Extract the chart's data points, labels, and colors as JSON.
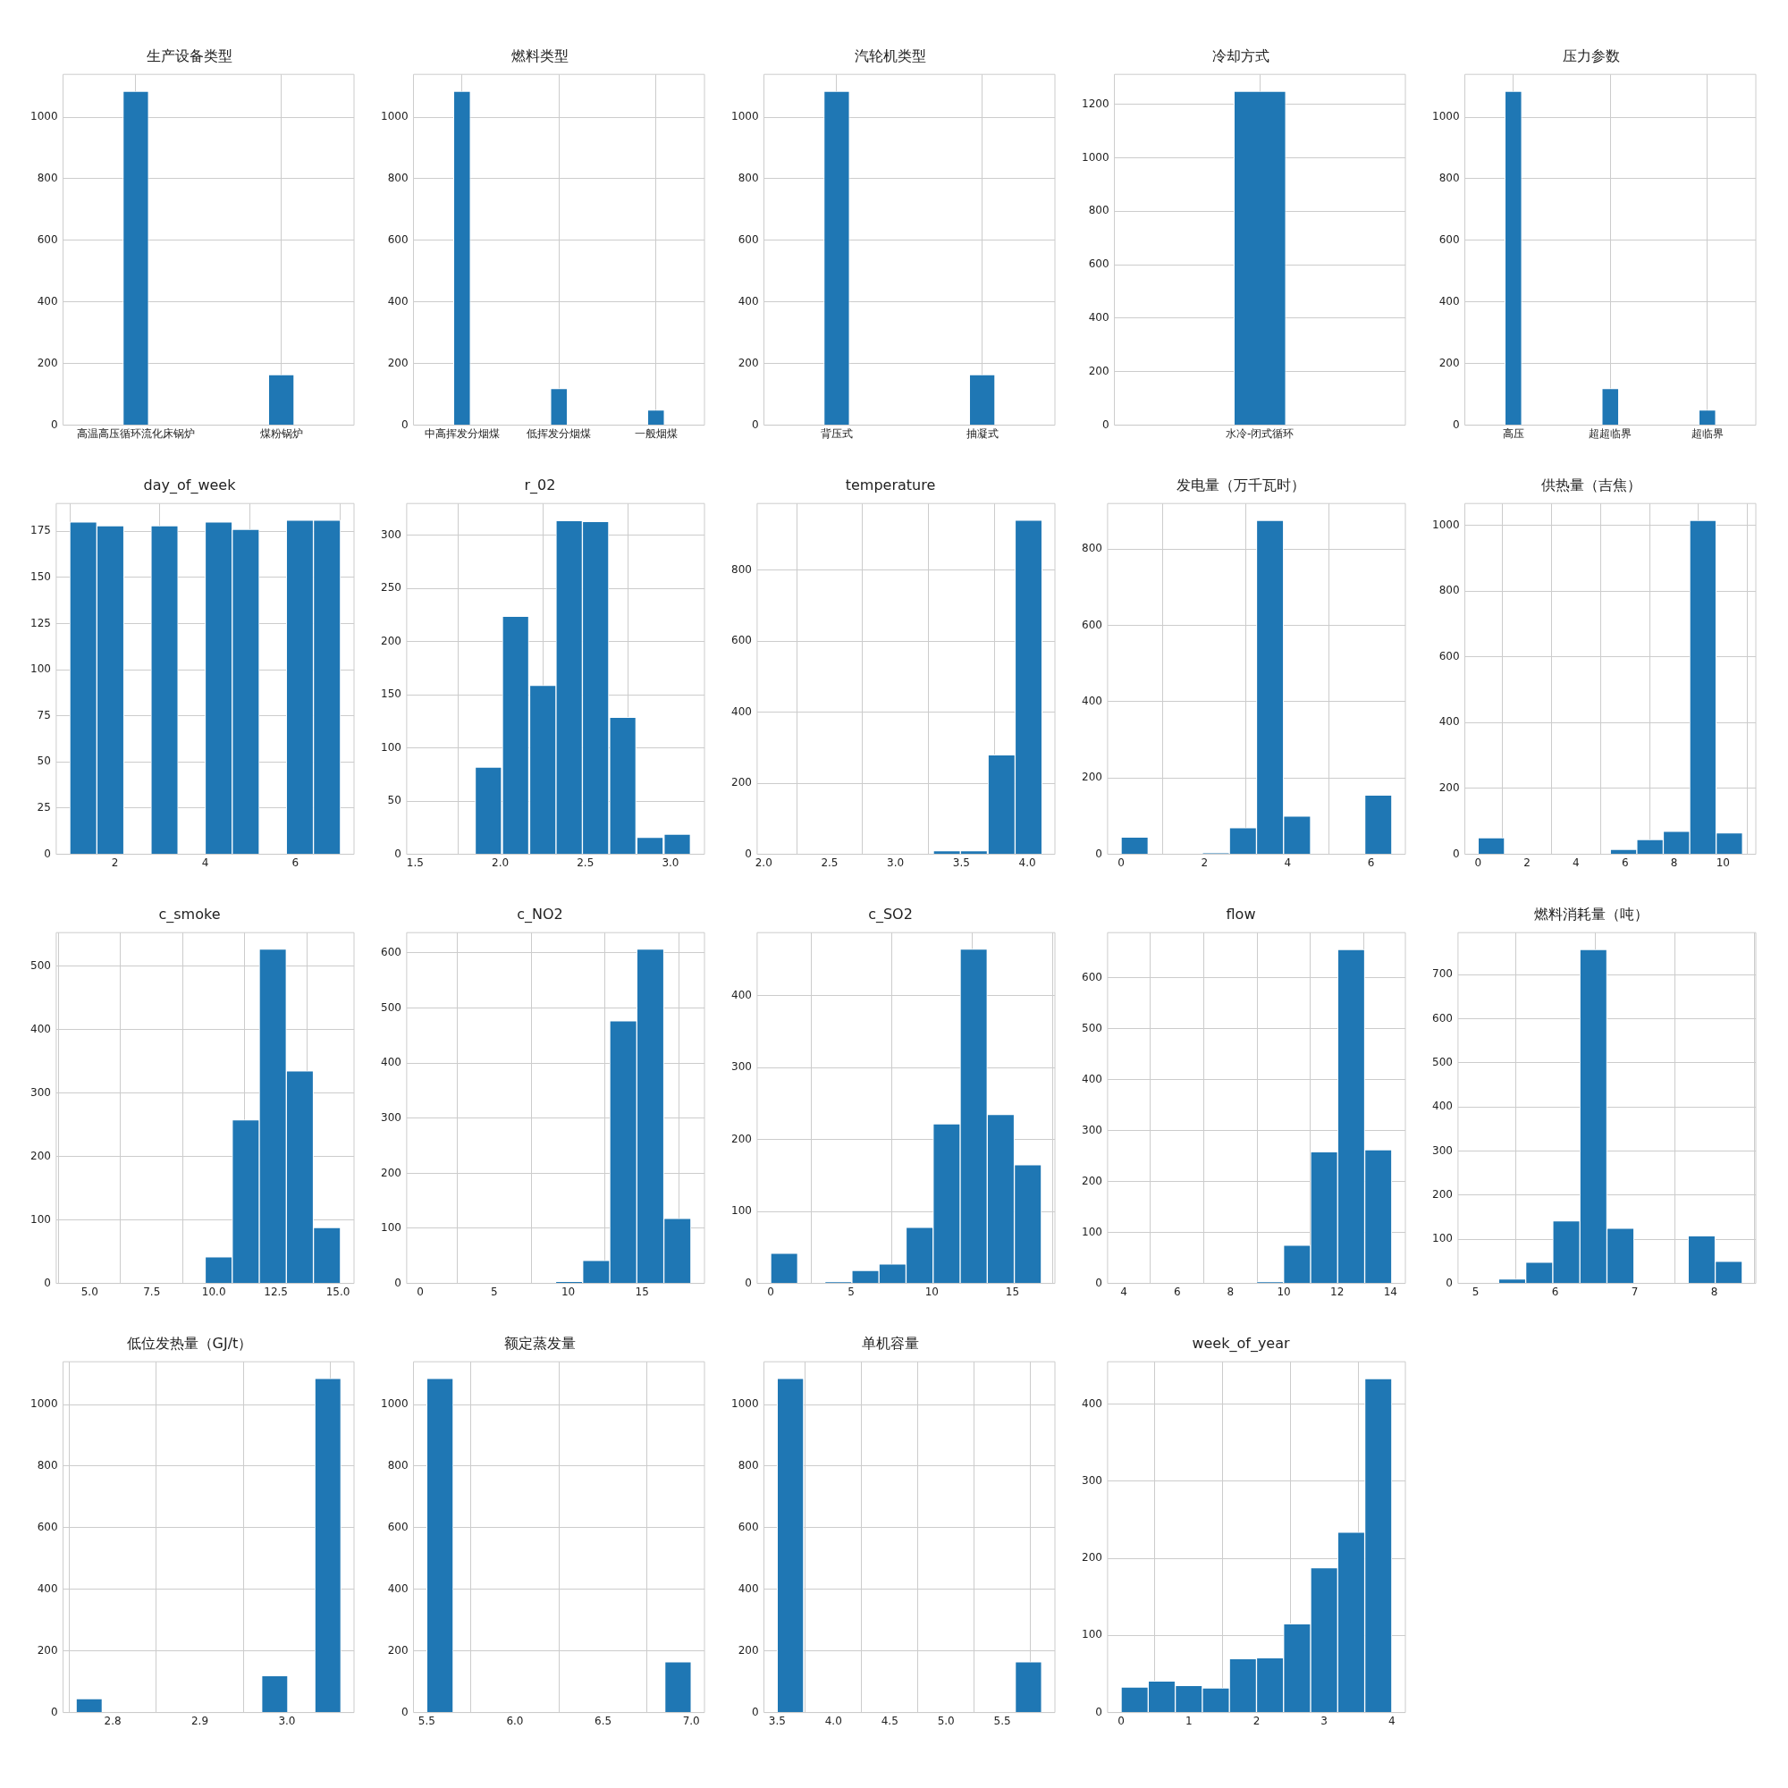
{
  "chart_data": [
    {
      "type": "bar",
      "title": "生产设备类型",
      "categories": [
        "高温高压循环流化床锅炉",
        "煤粉锅炉"
      ],
      "values": [
        1085,
        165
      ],
      "color": "#1f77b4",
      "ylim": [
        0,
        1139
      ],
      "yticks": [
        0,
        200,
        400,
        600,
        800,
        1000
      ],
      "grid": true
    },
    {
      "type": "bar",
      "title": "燃料类型",
      "categories": [
        "中高挥发分烟煤",
        "低挥发分烟煤",
        "一般烟煤"
      ],
      "values": [
        1085,
        120,
        50
      ],
      "color": "#1f77b4",
      "ylim": [
        0,
        1139
      ],
      "yticks": [
        0,
        200,
        400,
        600,
        800,
        1000
      ],
      "grid": true
    },
    {
      "type": "bar",
      "title": "汽轮机类型",
      "categories": [
        "背压式",
        "抽凝式"
      ],
      "values": [
        1085,
        165
      ],
      "color": "#1f77b4",
      "ylim": [
        0,
        1139
      ],
      "yticks": [
        0,
        200,
        400,
        600,
        800,
        1000
      ],
      "grid": true
    },
    {
      "type": "bar",
      "title": "冷却方式",
      "categories": [
        "水冷-闭式循环"
      ],
      "values": [
        1250
      ],
      "color": "#1f77b4",
      "ylim": [
        0,
        1312
      ],
      "yticks": [
        0,
        200,
        400,
        600,
        800,
        1000,
        1200
      ],
      "grid": true
    },
    {
      "type": "bar",
      "title": "压力参数",
      "categories": [
        "高压",
        "超超临界",
        "超临界"
      ],
      "values": [
        1085,
        120,
        50
      ],
      "color": "#1f77b4",
      "ylim": [
        0,
        1139
      ],
      "yticks": [
        0,
        200,
        400,
        600,
        800,
        1000
      ],
      "grid": true
    },
    {
      "type": "histogram",
      "title": "day_of_week",
      "bins": [
        1,
        1.6,
        2.2,
        2.8,
        3.4,
        4.0,
        4.6,
        5.2,
        5.8,
        6.4,
        7.0
      ],
      "values": [
        180,
        178,
        0,
        178,
        0,
        180,
        176,
        0,
        181,
        181
      ],
      "color": "#1f77b4",
      "xlim": [
        0.7,
        7.3
      ],
      "xticks": [
        2,
        4,
        6
      ],
      "ylim": [
        0,
        190
      ],
      "yticks": [
        0,
        25,
        50,
        75,
        100,
        125,
        150,
        175
      ],
      "grid": true
    },
    {
      "type": "histogram",
      "title": "r_02",
      "bins": [
        1.53,
        1.69,
        1.85,
        2.01,
        2.17,
        2.33,
        2.48,
        2.64,
        2.8,
        2.96,
        3.12
      ],
      "values": [
        0,
        0,
        82,
        224,
        159,
        314,
        313,
        129,
        16,
        19
      ],
      "color": "#1f77b4",
      "xlim": [
        1.45,
        3.2
      ],
      "xticks": [
        1.5,
        {
          "value": 2,
          "label": "2.0"
        },
        2.5,
        {
          "value": 3,
          "label": "3.0"
        }
      ],
      "ylim": [
        0,
        330
      ],
      "yticks": [
        0,
        50,
        100,
        150,
        200,
        250,
        300
      ],
      "grid": true
    },
    {
      "type": "histogram",
      "title": "temperature",
      "bins": [
        2.05,
        2.26,
        2.46,
        2.67,
        2.87,
        3.08,
        3.29,
        3.49,
        3.7,
        3.91,
        4.11
      ],
      "values": [
        0,
        0,
        0,
        0,
        0,
        0,
        10,
        10,
        280,
        940
      ],
      "color": "#1f77b4",
      "xlim": [
        1.95,
        4.21
      ],
      "xticks": [
        {
          "value": 2,
          "label": "2.0"
        },
        2.5,
        {
          "value": 3,
          "label": "3.0"
        },
        3.5,
        {
          "value": 4,
          "label": "4.0"
        }
      ],
      "ylim": [
        0,
        987
      ],
      "yticks": [
        0,
        200,
        400,
        600,
        800
      ],
      "grid": true
    },
    {
      "type": "histogram",
      "title": "发电量（万千瓦时）",
      "bins": [
        0,
        0.65,
        1.3,
        1.95,
        2.6,
        3.25,
        3.9,
        4.55,
        5.2,
        5.85,
        6.5
      ],
      "values": [
        45,
        0,
        0,
        3,
        70,
        875,
        100,
        0,
        0,
        155
      ],
      "color": "#1f77b4",
      "xlim": [
        -0.325,
        6.825
      ],
      "xticks": [
        0,
        2,
        4,
        6
      ],
      "ylim": [
        0,
        919
      ],
      "yticks": [
        0,
        200,
        400,
        600,
        800
      ],
      "grid": true
    },
    {
      "type": "histogram",
      "title": "供热量（吉焦）",
      "bins": [
        0,
        1.08,
        2.16,
        3.24,
        4.32,
        5.4,
        6.48,
        7.56,
        8.64,
        9.72,
        10.8
      ],
      "values": [
        50,
        0,
        0,
        0,
        0,
        15,
        45,
        70,
        1015,
        65
      ],
      "color": "#1f77b4",
      "xlim": [
        -0.54,
        11.34
      ],
      "xticks": [
        0,
        2,
        4,
        6,
        8,
        10
      ],
      "ylim": [
        0,
        1066
      ],
      "yticks": [
        0,
        200,
        400,
        600,
        800,
        1000
      ],
      "grid": true
    },
    {
      "type": "histogram",
      "title": "c_smoke",
      "bins": [
        4.2,
        5.29,
        6.38,
        7.47,
        8.56,
        9.65,
        10.74,
        11.83,
        12.92,
        14.01,
        15.1
      ],
      "values": [
        0,
        0,
        0,
        0,
        0,
        42,
        258,
        527,
        335,
        88
      ],
      "color": "#1f77b4",
      "xlim": [
        3.655,
        15.645
      ],
      "xticks": [
        {
          "value": 5,
          "label": "5.0"
        },
        7.5,
        {
          "value": 10,
          "label": "10.0"
        },
        12.5,
        {
          "value": 15,
          "label": "15.0"
        }
      ],
      "ylim": [
        0,
        553
      ],
      "yticks": [
        0,
        100,
        200,
        300,
        400,
        500
      ],
      "grid": true
    },
    {
      "type": "histogram",
      "title": "c_NO2",
      "bins": [
        0,
        1.83,
        3.66,
        5.49,
        7.32,
        9.15,
        10.98,
        12.81,
        14.64,
        16.47,
        18.3
      ],
      "values": [
        0,
        0,
        0,
        0,
        0,
        3,
        42,
        477,
        607,
        118
      ],
      "color": "#1f77b4",
      "xlim": [
        -0.915,
        19.215
      ],
      "xticks": [
        0,
        5,
        10,
        15
      ],
      "ylim": [
        0,
        637
      ],
      "yticks": [
        0,
        100,
        200,
        300,
        400,
        500,
        600
      ],
      "grid": true
    },
    {
      "type": "histogram",
      "title": "c_SO2",
      "bins": [
        0,
        1.68,
        3.36,
        5.04,
        6.72,
        8.4,
        10.08,
        11.76,
        13.44,
        15.12,
        16.8
      ],
      "values": [
        42,
        0,
        2,
        18,
        27,
        78,
        222,
        465,
        235,
        165
      ],
      "color": "#1f77b4",
      "xlim": [
        -0.84,
        17.64
      ],
      "xticks": [
        0,
        5,
        10,
        15
      ],
      "ylim": [
        0,
        488
      ],
      "yticks": [
        0,
        100,
        200,
        300,
        400
      ],
      "grid": true
    },
    {
      "type": "histogram",
      "title": "flow",
      "bins": [
        3.9,
        4.915,
        5.93,
        6.945,
        7.96,
        8.975,
        9.99,
        11.005,
        12.02,
        13.035,
        14.05
      ],
      "values": [
        0,
        0,
        0,
        0,
        0,
        3,
        75,
        258,
        655,
        262
      ],
      "color": "#1f77b4",
      "xlim": [
        3.39,
        14.56
      ],
      "xticks": [
        4,
        6,
        8,
        10,
        12,
        14
      ],
      "ylim": [
        0,
        688
      ],
      "yticks": [
        0,
        100,
        200,
        300,
        400,
        500,
        600
      ],
      "grid": true
    },
    {
      "type": "histogram",
      "title": "燃料消耗量（吨）",
      "bins": [
        4.95,
        5.29,
        5.63,
        5.97,
        6.31,
        6.65,
        6.99,
        7.33,
        7.67,
        8.01,
        8.35
      ],
      "values": [
        0,
        10,
        48,
        142,
        757,
        125,
        0,
        0,
        108,
        50
      ],
      "color": "#1f77b4",
      "xlim": [
        4.78,
        8.52
      ],
      "xticks": [
        5,
        6,
        7,
        8
      ],
      "ylim": [
        0,
        795
      ],
      "yticks": [
        0,
        100,
        200,
        300,
        400,
        500,
        600,
        700
      ],
      "grid": true
    },
    {
      "type": "histogram",
      "title": "低位发热量（GJ/t）",
      "bins": [
        2.758,
        2.788,
        2.819,
        2.849,
        2.88,
        2.91,
        2.94,
        2.971,
        3.001,
        3.032,
        3.062
      ],
      "values": [
        45,
        0,
        0,
        0,
        0,
        0,
        0,
        120,
        0,
        1085
      ],
      "color": "#1f77b4",
      "xlim": [
        2.743,
        3.077
      ],
      "xticks": [
        2.8,
        2.9,
        {
          "value": 3,
          "label": "3.0"
        }
      ],
      "ylim": [
        0,
        1139
      ],
      "yticks": [
        0,
        200,
        400,
        600,
        800,
        1000
      ],
      "grid": true
    },
    {
      "type": "histogram",
      "title": "额定蒸发量",
      "bins": [
        5.5,
        5.65,
        5.8,
        5.95,
        6.1,
        6.25,
        6.4,
        6.55,
        6.7,
        6.85,
        7.0
      ],
      "values": [
        1085,
        0,
        0,
        0,
        0,
        0,
        0,
        0,
        0,
        165
      ],
      "color": "#1f77b4",
      "xlim": [
        5.425,
        7.075
      ],
      "xticks": [
        5.5,
        {
          "value": 6,
          "label": "6.0"
        },
        6.5,
        {
          "value": 7,
          "label": "7.0"
        }
      ],
      "ylim": [
        0,
        1139
      ],
      "yticks": [
        0,
        200,
        400,
        600,
        800,
        1000
      ],
      "grid": true
    },
    {
      "type": "histogram",
      "title": "单机容量",
      "bins": [
        3.5,
        3.735,
        3.97,
        4.205,
        4.44,
        4.675,
        4.91,
        5.145,
        5.38,
        5.615,
        5.85
      ],
      "values": [
        1085,
        0,
        0,
        0,
        0,
        0,
        0,
        0,
        0,
        165
      ],
      "color": "#1f77b4",
      "xlim": [
        3.3825,
        5.9675
      ],
      "xticks": [
        3.5,
        {
          "value": 4,
          "label": "4.0"
        },
        4.5,
        {
          "value": 5,
          "label": "5.0"
        },
        5.5
      ],
      "ylim": [
        0,
        1139
      ],
      "yticks": [
        0,
        200,
        400,
        600,
        800,
        1000
      ],
      "grid": true
    },
    {
      "type": "histogram",
      "title": "week_of_year",
      "bins": [
        0,
        0.4,
        0.8,
        1.2,
        1.6,
        2.0,
        2.4,
        2.8,
        3.2,
        3.6,
        4.0
      ],
      "values": [
        33,
        41,
        35,
        32,
        70,
        71,
        115,
        188,
        234,
        433
      ],
      "color": "#1f77b4",
      "xlim": [
        -0.2,
        4.2
      ],
      "xticks": [
        0,
        1,
        2,
        3,
        4
      ],
      "ylim": [
        0,
        455
      ],
      "yticks": [
        0,
        100,
        200,
        300,
        400
      ],
      "grid": true
    }
  ]
}
